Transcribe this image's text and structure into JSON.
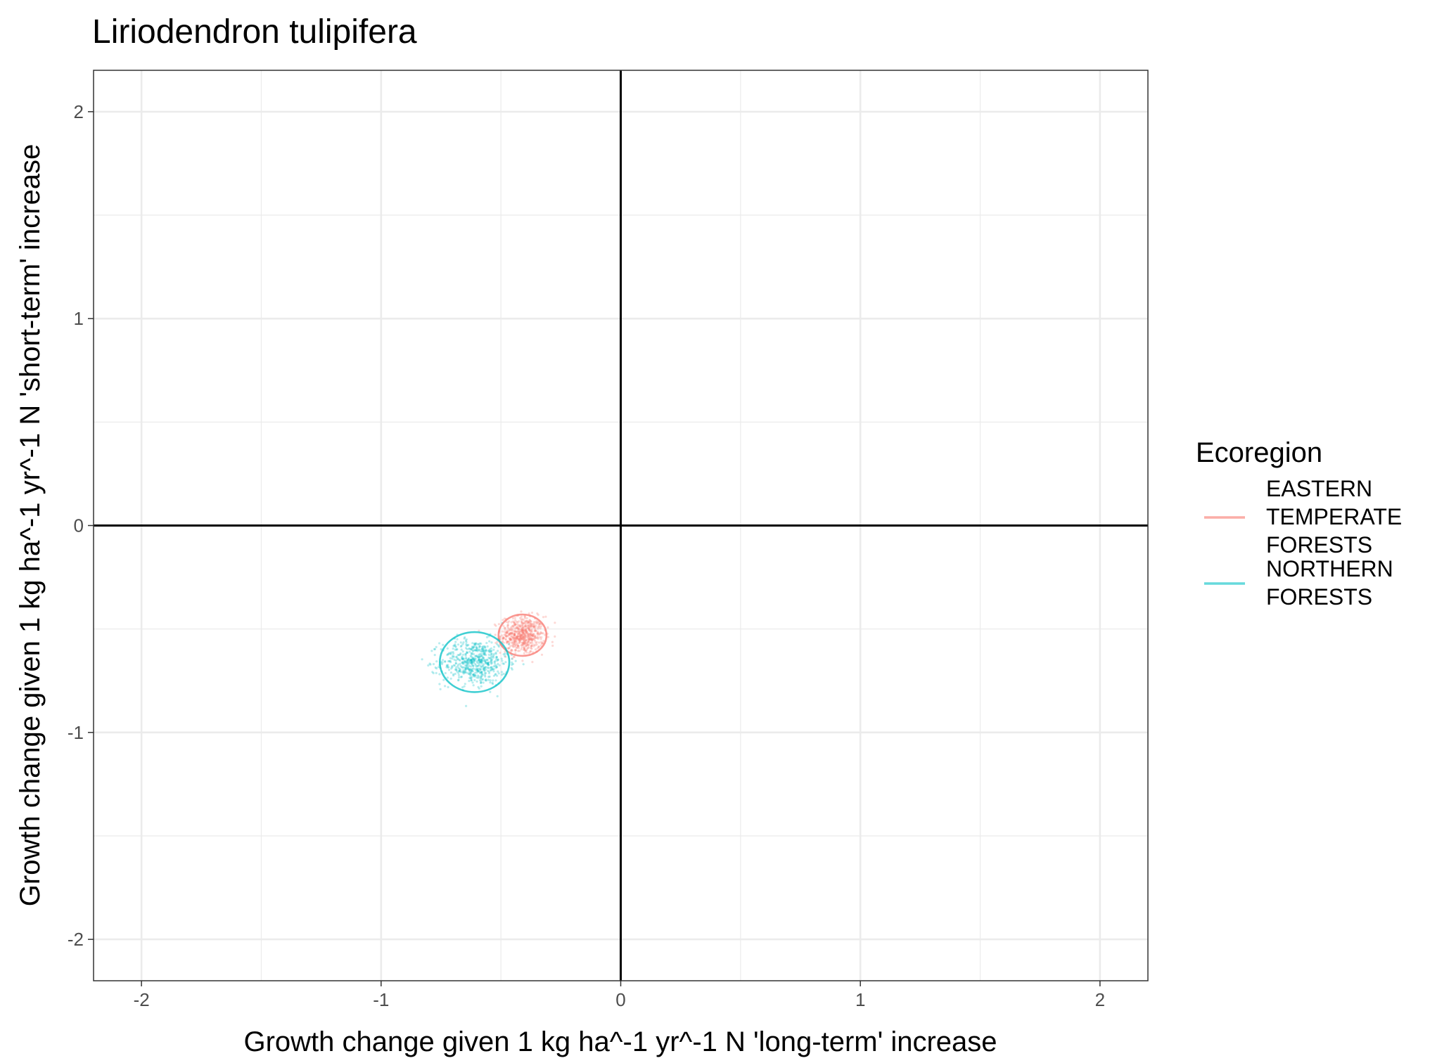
{
  "chart_data": {
    "type": "scatter",
    "title": "Liriodendron tulipifera",
    "xlabel": "Growth change given 1 kg ha^-1 yr^-1 N 'long-term' increase",
    "ylabel": "Growth change given 1 kg ha^-1 yr^-1 N 'short-term' increase",
    "xlim": [
      -2.2,
      2.2
    ],
    "ylim": [
      -2.2,
      2.2
    ],
    "x_ticks": [
      -2,
      -1,
      0,
      1,
      2
    ],
    "y_ticks": [
      -2,
      -1,
      0,
      1,
      2
    ],
    "x_tick_labels": [
      "-2",
      "-1",
      "0",
      "1",
      "2"
    ],
    "y_tick_labels": [
      "-2",
      "-1",
      "0",
      "1",
      "2"
    ],
    "grid": true,
    "reference_lines": {
      "x": 0,
      "y": 0
    },
    "legend": {
      "title": "Ecoregion",
      "position": "right"
    },
    "series": [
      {
        "name": "EASTERN TEMPERATE FORESTS",
        "label_lines": [
          "EASTERN",
          "TEMPERATE",
          "FORESTS"
        ],
        "color": "#F8766D",
        "center": [
          -0.41,
          -0.53
        ],
        "spread": [
          0.045,
          0.045
        ],
        "n_points": 600,
        "ellipse_radius": [
          0.1,
          0.1
        ]
      },
      {
        "name": "NORTHERN FORESTS",
        "label_lines": [
          "NORTHERN",
          "FORESTS"
        ],
        "color": "#00BFC4",
        "center": [
          -0.61,
          -0.66
        ],
        "spread": [
          0.07,
          0.055
        ],
        "n_points": 600,
        "ellipse_radius": [
          0.145,
          0.145
        ]
      }
    ]
  }
}
